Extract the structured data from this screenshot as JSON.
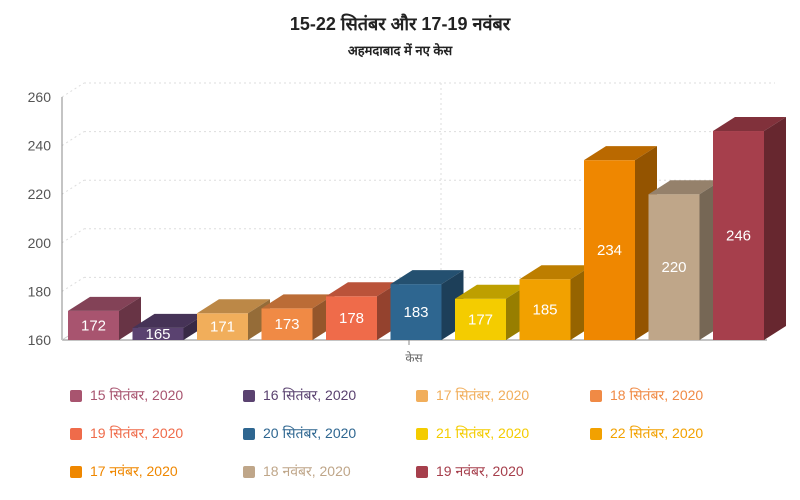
{
  "chart_data": {
    "type": "bar",
    "title": "15-22 सितंबर और 17-19 नवंबर",
    "subtitle": "अहमदाबाद में नए केस",
    "xlabel": "केस",
    "ylabel": "",
    "ylim": [
      160,
      260
    ],
    "yticks": [
      "160",
      "180",
      "200",
      "220",
      "240",
      "260"
    ],
    "legend_position": "bottom",
    "series": [
      {
        "name": "15 सितंबर, 2020",
        "value": 172,
        "color": "#a8546f"
      },
      {
        "name": "16 सितंबर, 2020",
        "value": 165,
        "color": "#5a4270"
      },
      {
        "name": "17 सितंबर, 2020",
        "value": 171,
        "color": "#f1ae5b"
      },
      {
        "name": "18 सितंबर, 2020",
        "value": 173,
        "color": "#f08a45"
      },
      {
        "name": "19 सितंबर, 2020",
        "value": 178,
        "color": "#ef6b4a"
      },
      {
        "name": "20 सितंबर, 2020",
        "value": 183,
        "color": "#2e6690"
      },
      {
        "name": "21 सितंबर, 2020",
        "value": 177,
        "color": "#f4cc00"
      },
      {
        "name": "22 सितंबर, 2020",
        "value": 185,
        "color": "#f2a100"
      },
      {
        "name": "17 नवंबर, 2020",
        "value": 234,
        "color": "#ef8700"
      },
      {
        "name": "18 नवंबर, 2020",
        "value": 220,
        "color": "#bfa689"
      },
      {
        "name": "19 नवंबर, 2020",
        "value": 246,
        "color": "#a63f4c"
      }
    ]
  }
}
